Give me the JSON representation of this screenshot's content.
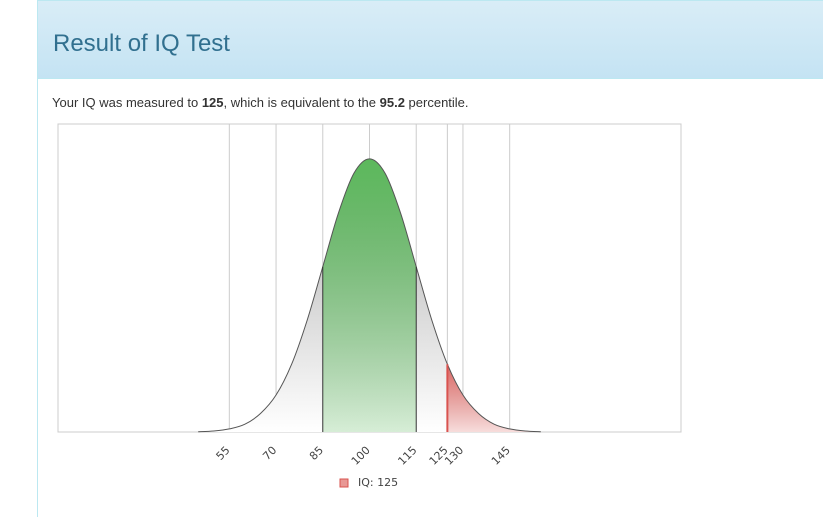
{
  "header": {
    "title": "Result of IQ Test"
  },
  "text": {
    "before": "Your IQ was measured to ",
    "score": 125,
    "middle": ", which is equivalent to the ",
    "percentile": 95.2,
    "after": " percentile."
  },
  "chart_data": {
    "type": "area",
    "x": [
      45,
      50,
      55,
      60,
      65,
      70,
      75,
      80,
      85,
      90,
      95,
      100,
      105,
      110,
      115,
      120,
      125,
      130,
      135,
      140,
      145,
      150,
      155
    ],
    "series": [
      {
        "name": "IQ: 125",
        "color": "#d9534f",
        "values": [
          0.003,
          0.01,
          0.03,
          0.076,
          0.18,
          0.36,
          0.66,
          1.09,
          1.61,
          2.13,
          2.52,
          2.66,
          2.52,
          2.13,
          1.61,
          1.09,
          0.66,
          0.36,
          0.18,
          0.076,
          0.03,
          0.01,
          0.003
        ]
      }
    ],
    "band": [
      85,
      115
    ],
    "band_color": "#5cb85c",
    "xlim": [
      0,
      200
    ],
    "ylim": [
      0,
      3
    ],
    "xticks": [
      55,
      70,
      85,
      100,
      115,
      125,
      130,
      145
    ],
    "grid": true
  }
}
